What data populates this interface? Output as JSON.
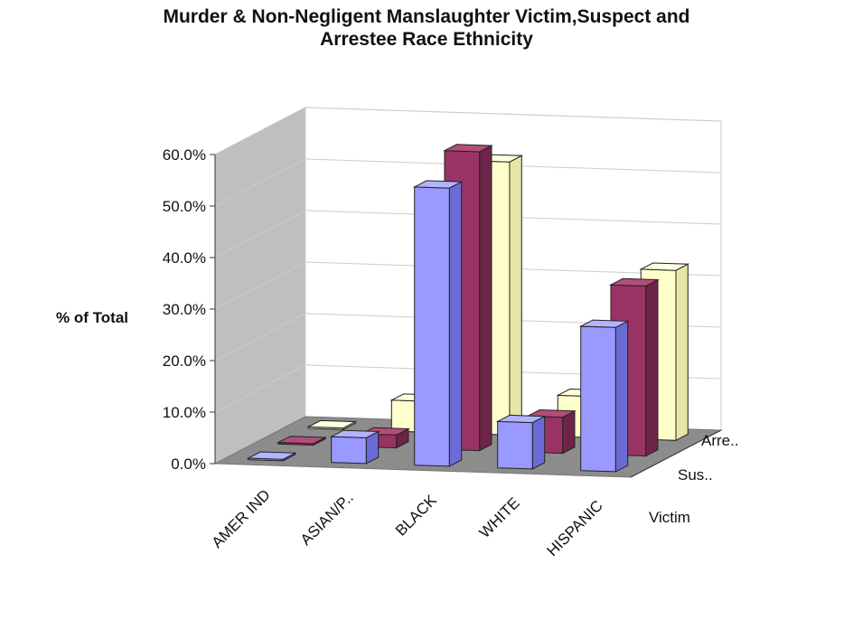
{
  "chart_data": {
    "type": "bar",
    "title_line1": "Murder & Non-Negligent Manslaughter Victim,Suspect and",
    "title_line2": "Arrestee Race Ethnicity",
    "ylabel": "% of Total",
    "ylim": [
      0,
      60
    ],
    "yticks": [
      "0.0%",
      "10.0%",
      "20.0%",
      "30.0%",
      "40.0%",
      "50.0%",
      "60.0%"
    ],
    "categories": [
      "AMER IND",
      "ASIAN/P..",
      "BLACK",
      "WHITE",
      "HISPANIC"
    ],
    "series_labels": [
      "Victim",
      "Sus..",
      "Arre.."
    ],
    "series": [
      {
        "name": "Victim",
        "values": [
          0.3,
          5.0,
          54.0,
          9.0,
          28.0
        ]
      },
      {
        "name": "Suspect",
        "values": [
          0.3,
          2.5,
          58.0,
          7.0,
          33.0
        ]
      },
      {
        "name": "Arrestee",
        "values": [
          0.3,
          6.0,
          53.0,
          8.0,
          33.0
        ]
      }
    ],
    "colors": {
      "series_front": [
        "#9999ff",
        "#993366",
        "#ffffcc"
      ],
      "series_top": [
        "#b3b3ff",
        "#b34d7a",
        "#ffffe0"
      ],
      "series_side": [
        "#6b6bd6",
        "#6e2448",
        "#e6e6a8"
      ],
      "back_wall": "#ffffff",
      "side_wall": "#bfbfbf",
      "floor": "#8c8c8c",
      "gridline": "#cccccc",
      "edge": "#222222"
    },
    "grid": true
  }
}
